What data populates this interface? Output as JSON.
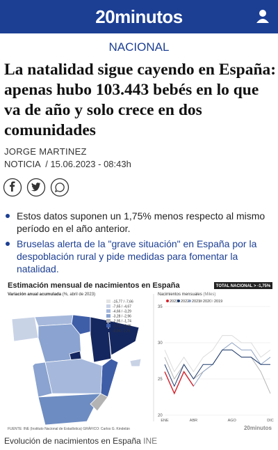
{
  "header": {
    "logo": "20minutos"
  },
  "section": "NACIONAL",
  "article": {
    "title": "La natalidad sigue cayendo en España: apenas hubo 103.443 bebés en lo que va de año y solo crece en dos comunidades",
    "author": "JORGE MARTINEZ",
    "meta": "NOTICIA  / 15.06.2023 - 08:43h",
    "bullets": [
      "Estos datos suponen un 1,75% menos respecto al mismo período en el año anterior.",
      "Bruselas alerta de la \"grave situación\" en España por la despoblación rural y pide medidas para fomentar la natalidad."
    ]
  },
  "infographic": {
    "title": "Estimación mensual de nacimientos en España",
    "map_subtitle": "Variación anual acumulada",
    "map_subtitle_note": "(%, abril de 2023)",
    "map_legend": [
      {
        "label": "-15,77 / -7,66",
        "color": "#e3e3e3"
      },
      {
        "label": "-7,65 / -4,67",
        "color": "#c9d3e6"
      },
      {
        "label": "-4,66 / -3,29",
        "color": "#a6b9dc"
      },
      {
        "label": "-3,28 / -2,96",
        "color": "#8aa3d0"
      },
      {
        "label": "-2,95 / -1,74",
        "color": "#b3b3b3"
      },
      {
        "label": "-1,73 / -0,95",
        "color": "#3f5ea8"
      },
      {
        "label": "-0,94 / 2,76",
        "color": "#15275f"
      }
    ],
    "total_badge": "TOTAL NACIONAL > -1,75%",
    "source": "FUENTE: INE (Instituto Nacional de Estadística)   GRÁFICO: Carlos G. Kindelán",
    "brand": "20minutos",
    "chart": {
      "type": "line",
      "title": "Nacimientos mensuales",
      "unit": "(Miles)",
      "categories": [
        "ENE",
        null,
        null,
        "ABR",
        null,
        null,
        null,
        "AGO",
        null,
        null,
        null,
        "DIC"
      ],
      "ylim": [
        20,
        35
      ],
      "yticks": [
        35,
        30,
        25,
        20
      ],
      "grid": true,
      "series": [
        {
          "name": "2023",
          "color": "#d6202a",
          "values": [
            26,
            23,
            26,
            24,
            null,
            null,
            null,
            null,
            null,
            null,
            null,
            null
          ]
        },
        {
          "name": "2022",
          "color": "#1f3b6e",
          "values": [
            27,
            24,
            27,
            25,
            27,
            27,
            29,
            29,
            28,
            28,
            27,
            27
          ]
        },
        {
          "name": "2021",
          "color": "#8fa3c4",
          "values": [
            26,
            23,
            26,
            24,
            26,
            27,
            29,
            30,
            29,
            29,
            27,
            28
          ]
        },
        {
          "name": "2020",
          "color": "#b5b5b5",
          "values": [
            28,
            25,
            27,
            25,
            26,
            27,
            29,
            29,
            28,
            28,
            26,
            23
          ]
        },
        {
          "name": "2019",
          "color": "#dcdcdc",
          "values": [
            29,
            26,
            28,
            26,
            28,
            29,
            31,
            31,
            30,
            30,
            28,
            29
          ]
        }
      ]
    }
  },
  "caption": {
    "text": "Evolución de nacimientos en España",
    "credit": "INE"
  }
}
